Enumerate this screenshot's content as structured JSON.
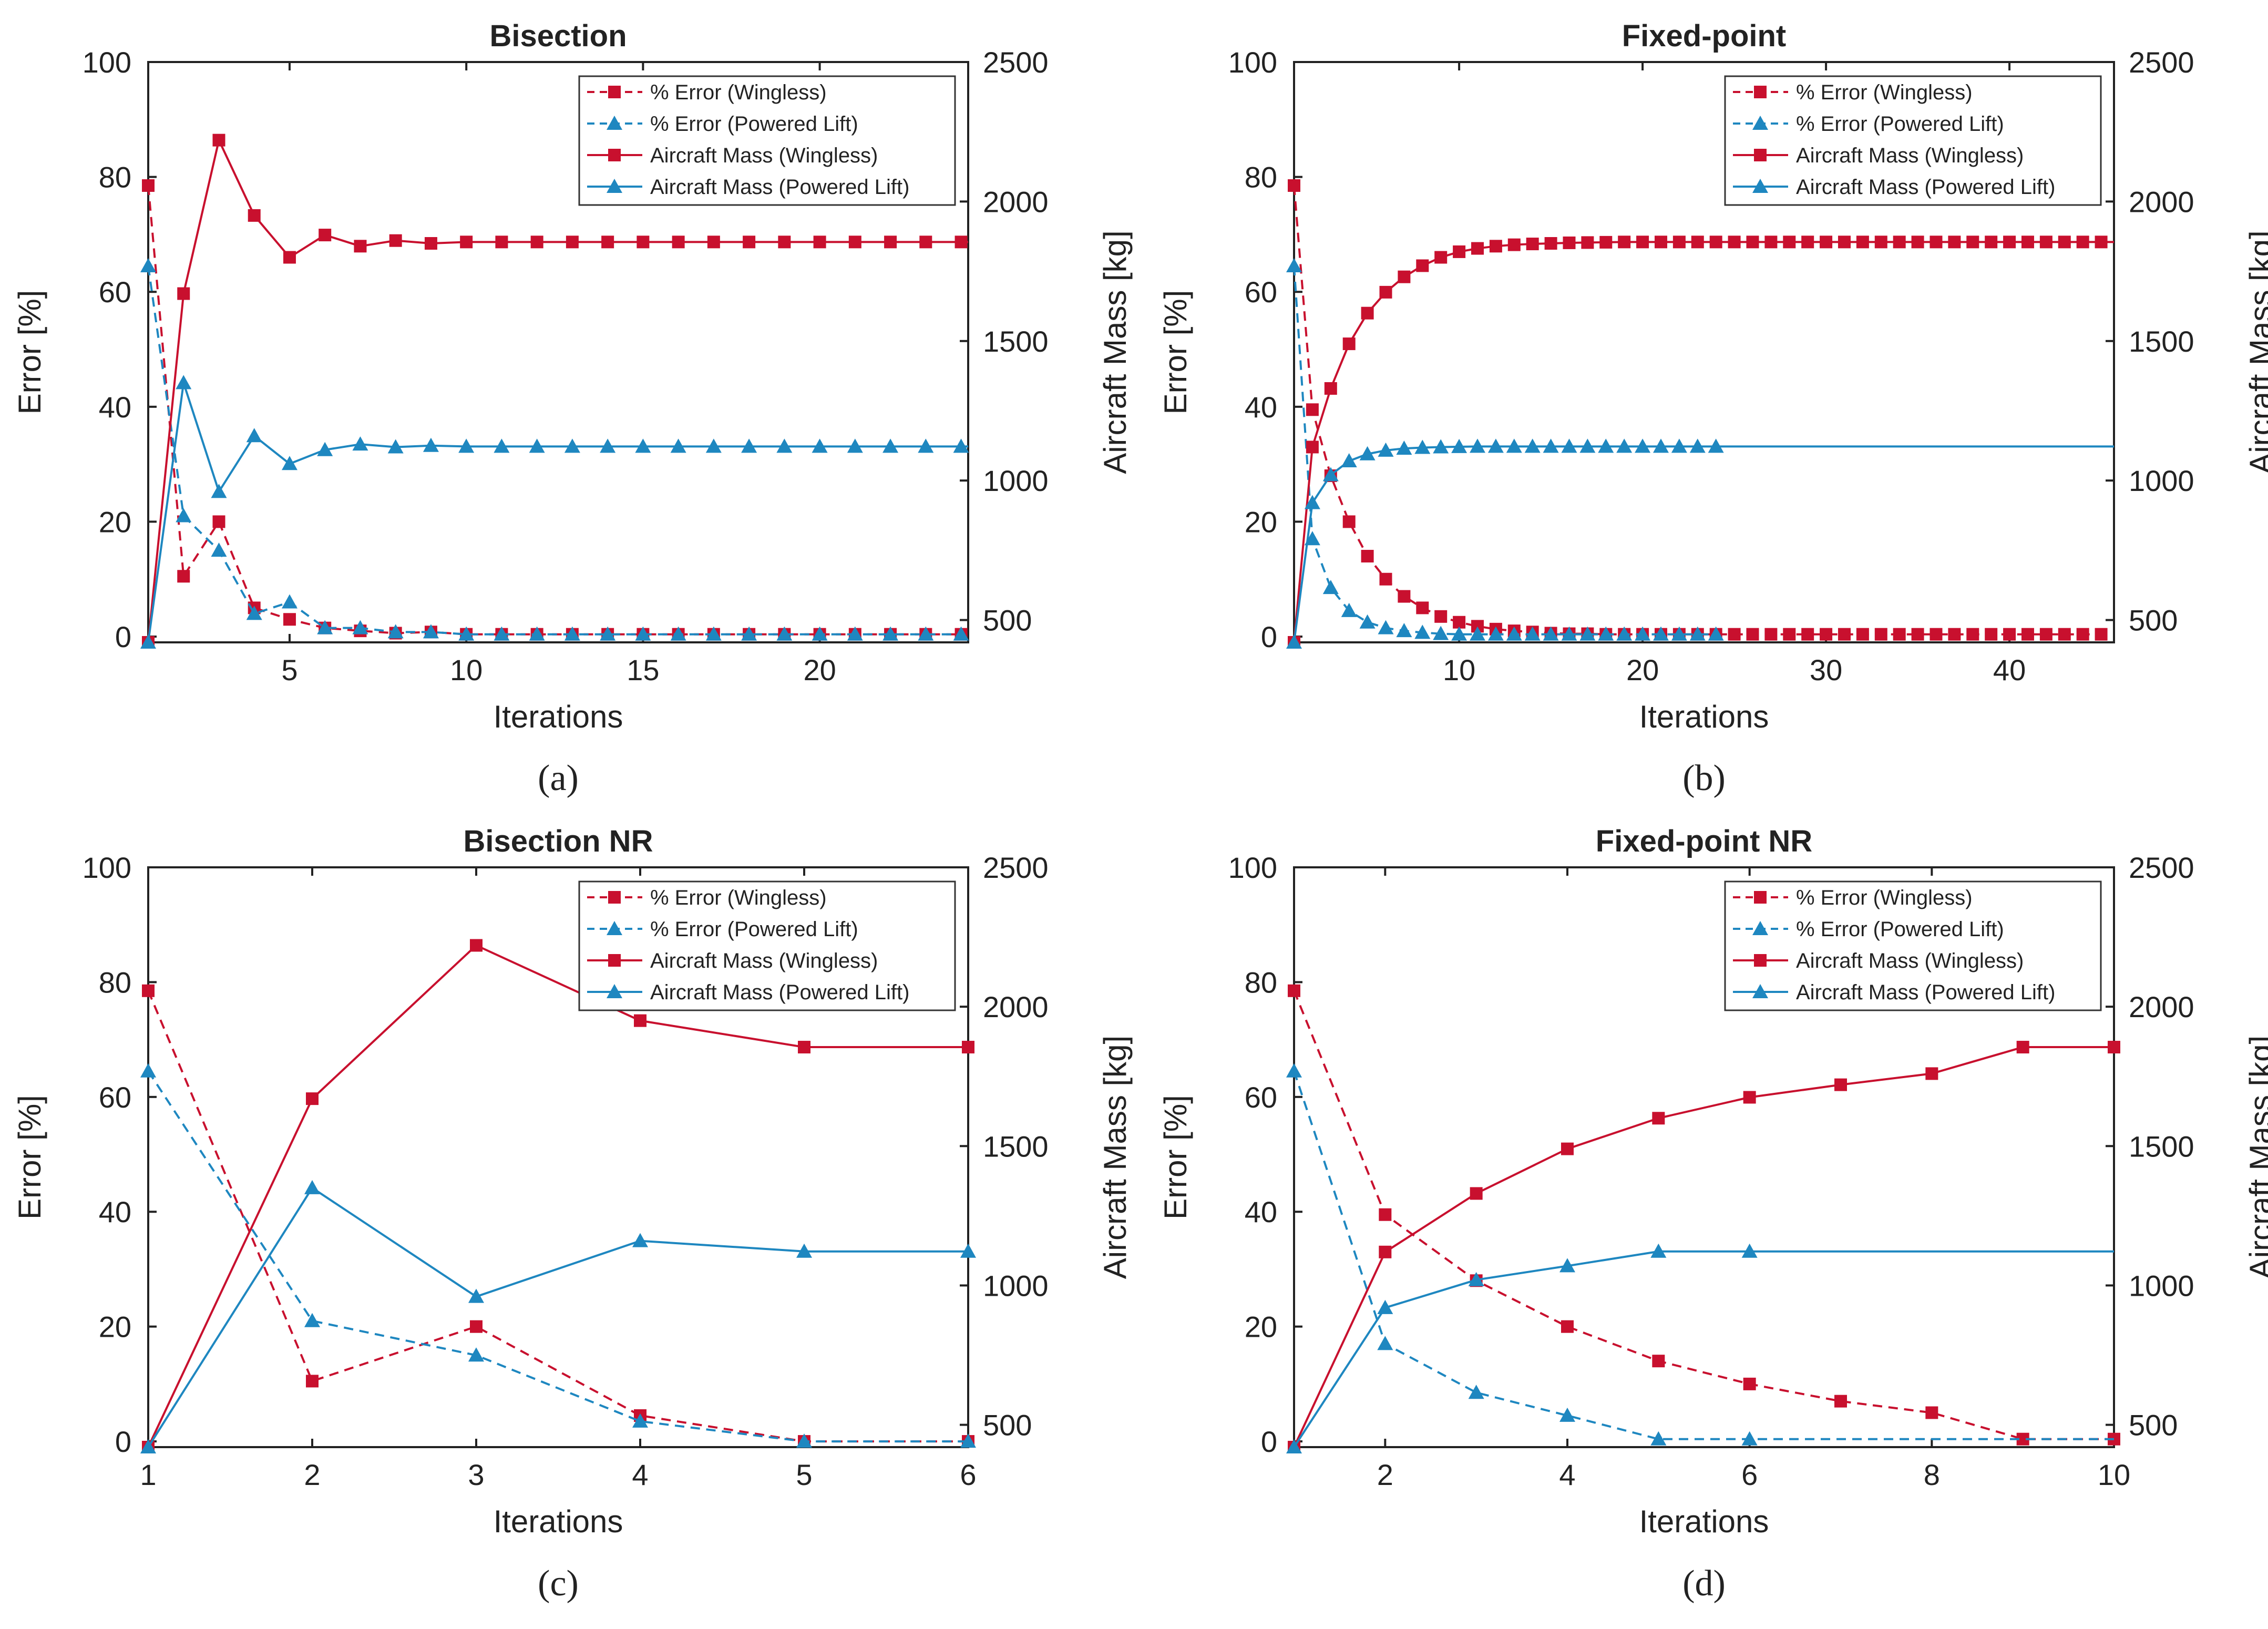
{
  "figure": {
    "captions": [
      "(a)",
      "(b)",
      "(c)",
      "(d)"
    ]
  },
  "colors": {
    "red": "#c8102e",
    "blue": "#1e87c0",
    "axis": "#222222",
    "text": "#222222",
    "legend_border": "#333333"
  },
  "legend": {
    "entries": [
      {
        "label": "% Error (Wingless)",
        "color": "red",
        "dash": true,
        "marker": "square"
      },
      {
        "label": "% Error (Powered Lift)",
        "color": "blue",
        "dash": true,
        "marker": "triangle"
      },
      {
        "label": "Aircraft Mass (Wingless)",
        "color": "red",
        "dash": false,
        "marker": "square"
      },
      {
        "label": "Aircraft Mass (Powered Lift)",
        "color": "blue",
        "dash": false,
        "marker": "triangle"
      }
    ]
  },
  "chart_data": [
    {
      "panel": "a",
      "type": "line",
      "title": "Bisection",
      "xlabel": "Iterations",
      "ylabel": "Error [%]",
      "y2label": "Aircraft Mass [kg]",
      "xlim": [
        1,
        24.2
      ],
      "ylim": [
        -1,
        100
      ],
      "y2lim": [
        420,
        2500
      ],
      "xticks": [
        5,
        10,
        15,
        20
      ],
      "yticks": [
        0,
        20,
        40,
        60,
        80,
        100
      ],
      "y2ticks": [
        500,
        1000,
        1500,
        2000,
        2500
      ],
      "series": [
        {
          "name": "% Error (Wingless)",
          "axis": "left",
          "color": "red",
          "dash": true,
          "marker": "square",
          "x": [
            1,
            2,
            3,
            4,
            5,
            6,
            7,
            8,
            9,
            10,
            11,
            12,
            13,
            14,
            15,
            16,
            17,
            18,
            19,
            20,
            21,
            22,
            23,
            24
          ],
          "y": [
            78.5,
            10.5,
            20,
            5,
            3,
            1.5,
            1,
            0.6,
            0.8,
            0.4,
            0.4,
            0.4,
            0.4,
            0.4,
            0.4,
            0.4,
            0.4,
            0.4,
            0.4,
            0.4,
            0.4,
            0.4,
            0.4,
            0.4
          ]
        },
        {
          "name": "% Error (Powered Lift)",
          "axis": "left",
          "color": "blue",
          "dash": true,
          "marker": "triangle",
          "x": [
            1,
            2,
            3,
            4,
            5,
            6,
            7,
            8,
            9,
            10,
            11,
            12,
            13,
            14,
            15,
            16,
            17,
            18,
            19,
            20,
            21,
            22,
            23,
            24
          ],
          "y": [
            64.5,
            21,
            15,
            4,
            6,
            1.5,
            1.5,
            0.8,
            0.8,
            0.4,
            0.4,
            0.4,
            0.4,
            0.4,
            0.4,
            0.4,
            0.4,
            0.4,
            0.4,
            0.4,
            0.4,
            0.4,
            0.4,
            0.4
          ]
        },
        {
          "name": "Aircraft Mass (Wingless)",
          "axis": "right",
          "color": "red",
          "dash": false,
          "marker": "square",
          "x": [
            1,
            2,
            3,
            4,
            5,
            6,
            7,
            8,
            9,
            10,
            11,
            12,
            13,
            14,
            15,
            16,
            17,
            18,
            19,
            20,
            21,
            22,
            23,
            24
          ],
          "y": [
            420,
            1670,
            2220,
            1950,
            1800,
            1880,
            1840,
            1860,
            1850,
            1855,
            1855,
            1855,
            1855,
            1855,
            1855,
            1855,
            1855,
            1855,
            1855,
            1855,
            1855,
            1855,
            1855,
            1855
          ],
          "line_end": 24.2
        },
        {
          "name": "Aircraft Mass (Powered Lift)",
          "axis": "right",
          "color": "blue",
          "dash": false,
          "marker": "triangle",
          "x": [
            1,
            2,
            3,
            4,
            5,
            6,
            7,
            8,
            9,
            10,
            11,
            12,
            13,
            14,
            15,
            16,
            17,
            18,
            19,
            20,
            21,
            22,
            23,
            24
          ],
          "y": [
            420,
            1350,
            960,
            1160,
            1060,
            1110,
            1130,
            1120,
            1125,
            1122,
            1122,
            1122,
            1122,
            1122,
            1122,
            1122,
            1122,
            1122,
            1122,
            1122,
            1122,
            1122,
            1122,
            1122
          ],
          "line_end": 24.2
        }
      ]
    },
    {
      "panel": "b",
      "type": "line",
      "title": "Fixed-point",
      "xlabel": "Iterations",
      "ylabel": "Error [%]",
      "y2label": "Aircraft Mass [kg]",
      "xlim": [
        1,
        45.7
      ],
      "ylim": [
        -1,
        100
      ],
      "y2lim": [
        420,
        2500
      ],
      "xticks": [
        10,
        20,
        30,
        40
      ],
      "yticks": [
        0,
        20,
        40,
        60,
        80,
        100
      ],
      "y2ticks": [
        500,
        1000,
        1500,
        2000,
        2500
      ],
      "series": [
        {
          "name": "% Error (Wingless)",
          "axis": "left",
          "color": "red",
          "dash": true,
          "marker": "square",
          "x": [
            1,
            2,
            3,
            4,
            5,
            6,
            7,
            8,
            9,
            10,
            11,
            12,
            13,
            14,
            15,
            16,
            17,
            18,
            19,
            20,
            21,
            22,
            23,
            24,
            25,
            26,
            27,
            28,
            29,
            30,
            31,
            32,
            33,
            34,
            35,
            36,
            37,
            38,
            39,
            40,
            41,
            42,
            43,
            44,
            45
          ],
          "y": [
            78.5,
            39.5,
            28,
            20,
            14,
            10,
            7,
            5,
            3.5,
            2.5,
            1.8,
            1.3,
            1,
            0.8,
            0.6,
            0.5,
            0.5,
            0.4,
            0.4,
            0.4,
            0.4,
            0.4,
            0.4,
            0.4,
            0.4,
            0.4,
            0.4,
            0.4,
            0.4,
            0.4,
            0.4,
            0.4,
            0.4,
            0.4,
            0.4,
            0.4,
            0.4,
            0.4,
            0.4,
            0.4,
            0.4,
            0.4,
            0.4,
            0.4,
            0.4
          ]
        },
        {
          "name": "% Error (Powered Lift)",
          "axis": "left",
          "color": "blue",
          "dash": true,
          "marker": "triangle",
          "x": [
            1,
            2,
            3,
            4,
            5,
            6,
            7,
            8,
            9,
            10,
            11,
            12,
            13,
            14,
            15,
            16,
            17,
            18,
            19,
            20,
            21,
            22,
            23,
            24
          ],
          "y": [
            64.5,
            17,
            8.5,
            4.5,
            2.5,
            1.5,
            1,
            0.7,
            0.5,
            0.4,
            0.4,
            0.4,
            0.4,
            0.4,
            0.4,
            0.4,
            0.4,
            0.4,
            0.4,
            0.4,
            0.4,
            0.4,
            0.4,
            0.4
          ]
        },
        {
          "name": "Aircraft Mass (Wingless)",
          "axis": "right",
          "color": "red",
          "dash": false,
          "marker": "square",
          "x": [
            1,
            2,
            3,
            4,
            5,
            6,
            7,
            8,
            9,
            10,
            11,
            12,
            13,
            14,
            15,
            16,
            17,
            18,
            19,
            20,
            21,
            22,
            23,
            24,
            25,
            26,
            27,
            28,
            29,
            30,
            31,
            32,
            33,
            34,
            35,
            36,
            37,
            38,
            39,
            40,
            41,
            42,
            43,
            44,
            45
          ],
          "y": [
            420,
            1120,
            1330,
            1490,
            1600,
            1675,
            1730,
            1770,
            1800,
            1820,
            1832,
            1840,
            1845,
            1848,
            1850,
            1852,
            1853,
            1854,
            1855,
            1855,
            1855,
            1855,
            1855,
            1855,
            1855,
            1855,
            1855,
            1855,
            1855,
            1855,
            1855,
            1855,
            1855,
            1855,
            1855,
            1855,
            1855,
            1855,
            1855,
            1855,
            1855,
            1855,
            1855,
            1855,
            1855
          ],
          "line_end": 45.7
        },
        {
          "name": "Aircraft Mass (Powered Lift)",
          "axis": "right",
          "color": "blue",
          "dash": false,
          "marker": "triangle",
          "x": [
            1,
            2,
            3,
            4,
            5,
            6,
            7,
            8,
            9,
            10,
            11,
            12,
            13,
            14,
            15,
            16,
            17,
            18,
            19,
            20,
            21,
            22,
            23,
            24
          ],
          "y": [
            420,
            920,
            1020,
            1070,
            1095,
            1108,
            1115,
            1118,
            1120,
            1121,
            1122,
            1122,
            1122,
            1122,
            1122,
            1122,
            1122,
            1122,
            1122,
            1122,
            1122,
            1122,
            1122,
            1122
          ],
          "line_end": 45.7
        }
      ]
    },
    {
      "panel": "c",
      "type": "line",
      "title": "Bisection NR",
      "xlabel": "Iterations",
      "ylabel": "Error [%]",
      "y2label": "Aircraft Mass [kg]",
      "xlim": [
        1,
        6
      ],
      "ylim": [
        -1,
        100
      ],
      "y2lim": [
        420,
        2500
      ],
      "xticks": [
        1,
        2,
        3,
        4,
        5,
        6
      ],
      "yticks": [
        0,
        20,
        40,
        60,
        80,
        100
      ],
      "y2ticks": [
        500,
        1000,
        1500,
        2000,
        2500
      ],
      "series": [
        {
          "name": "% Error (Wingless)",
          "axis": "left",
          "color": "red",
          "dash": true,
          "marker": "square",
          "x": [
            1,
            2,
            3,
            4,
            5,
            6
          ],
          "y": [
            78.5,
            10.5,
            20,
            4.5,
            0,
            0
          ]
        },
        {
          "name": "% Error (Powered Lift)",
          "axis": "left",
          "color": "blue",
          "dash": true,
          "marker": "triangle",
          "x": [
            1,
            2,
            3,
            4,
            5,
            6
          ],
          "y": [
            64.5,
            21,
            15,
            3.5,
            0,
            0
          ]
        },
        {
          "name": "Aircraft Mass (Wingless)",
          "axis": "right",
          "color": "red",
          "dash": false,
          "marker": "square",
          "x": [
            1,
            2,
            3,
            4,
            5,
            6
          ],
          "y": [
            420,
            1670,
            2220,
            1950,
            1855,
            1855
          ]
        },
        {
          "name": "Aircraft Mass (Powered Lift)",
          "axis": "right",
          "color": "blue",
          "dash": false,
          "marker": "triangle",
          "x": [
            1,
            2,
            3,
            4,
            5,
            6
          ],
          "y": [
            420,
            1350,
            960,
            1160,
            1122,
            1122
          ]
        }
      ]
    },
    {
      "panel": "d",
      "type": "line",
      "title": "Fixed-point NR",
      "xlabel": "Iterations",
      "ylabel": "Error [%]",
      "y2label": "Aircraft Mass [kg]",
      "xlim": [
        1,
        10
      ],
      "ylim": [
        -1,
        100
      ],
      "y2lim": [
        420,
        2500
      ],
      "xticks": [
        2,
        4,
        6,
        8,
        10
      ],
      "yticks": [
        0,
        20,
        40,
        60,
        80,
        100
      ],
      "y2ticks": [
        500,
        1000,
        1500,
        2000,
        2500
      ],
      "series": [
        {
          "name": "% Error (Wingless)",
          "axis": "left",
          "color": "red",
          "dash": true,
          "marker": "square",
          "x": [
            1,
            2,
            3,
            4,
            5,
            6,
            7,
            8,
            9,
            10
          ],
          "y": [
            78.5,
            39.5,
            28,
            20,
            14,
            10,
            7,
            5,
            0.4,
            0.4
          ]
        },
        {
          "name": "% Error (Powered Lift)",
          "axis": "left",
          "color": "blue",
          "dash": true,
          "marker": "triangle",
          "x": [
            1,
            2,
            3,
            4,
            5,
            6
          ],
          "y": [
            64.5,
            17,
            8.5,
            4.5,
            0.4,
            0.4
          ],
          "line_end": 10
        },
        {
          "name": "Aircraft Mass (Wingless)",
          "axis": "right",
          "color": "red",
          "dash": false,
          "marker": "square",
          "x": [
            1,
            2,
            3,
            4,
            5,
            6,
            7,
            8,
            9,
            10
          ],
          "y": [
            420,
            1120,
            1330,
            1490,
            1600,
            1675,
            1720,
            1760,
            1855,
            1855
          ]
        },
        {
          "name": "Aircraft Mass (Powered Lift)",
          "axis": "right",
          "color": "blue",
          "dash": false,
          "marker": "triangle",
          "x": [
            1,
            2,
            3,
            4,
            5,
            6
          ],
          "y": [
            420,
            920,
            1020,
            1070,
            1122,
            1122
          ],
          "line_end": 10
        }
      ]
    }
  ]
}
